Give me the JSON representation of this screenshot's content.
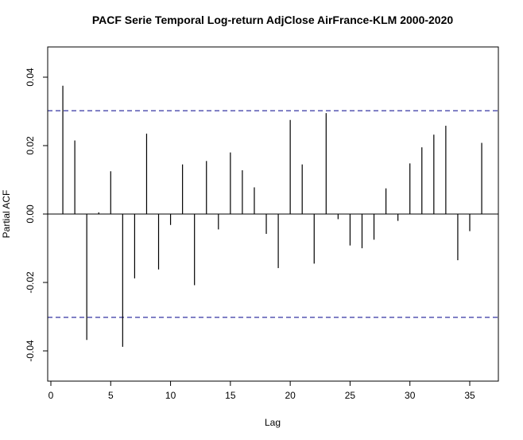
{
  "chart_data": {
    "type": "bar",
    "title": "PACF Serie Temporal Log-return AdjClose AirFrance-KLM 2000-2020",
    "xlabel": "Lag",
    "ylabel": "Partial ACF",
    "xlim": [
      0,
      37
    ],
    "ylim": [
      -0.05,
      0.05
    ],
    "x_ticks": [
      0,
      5,
      10,
      15,
      20,
      25,
      30,
      35
    ],
    "x_tick_labels": [
      "0",
      "5",
      "10",
      "15",
      "20",
      "25",
      "30",
      "35"
    ],
    "y_ticks": [
      -0.04,
      -0.02,
      0.0,
      0.02,
      0.04
    ],
    "y_tick_labels": [
      "-0.04",
      "-0.02",
      "0.00",
      "0.02",
      "0.04"
    ],
    "confidence_band": [
      -0.0302,
      0.0302
    ],
    "confidence_color": "#00008b",
    "grid": false,
    "x": [
      1,
      2,
      3,
      4,
      5,
      6,
      7,
      8,
      9,
      10,
      11,
      12,
      13,
      14,
      15,
      16,
      17,
      18,
      19,
      20,
      21,
      22,
      23,
      24,
      25,
      26,
      27,
      28,
      29,
      30,
      31,
      32,
      33,
      34,
      35,
      36
    ],
    "values": [
      0.0375,
      0.0215,
      -0.0368,
      0.0005,
      0.0125,
      -0.0388,
      -0.0188,
      0.0235,
      -0.0162,
      -0.0032,
      0.0145,
      -0.0208,
      0.0155,
      -0.0045,
      0.018,
      0.0128,
      0.0078,
      -0.0058,
      -0.0158,
      0.0275,
      0.0145,
      -0.0145,
      0.0295,
      -0.0015,
      -0.0092,
      -0.01,
      -0.0075,
      0.0075,
      -0.002,
      0.0148,
      0.0195,
      0.0232,
      0.0258,
      -0.0135,
      -0.005,
      0.0208
    ]
  }
}
